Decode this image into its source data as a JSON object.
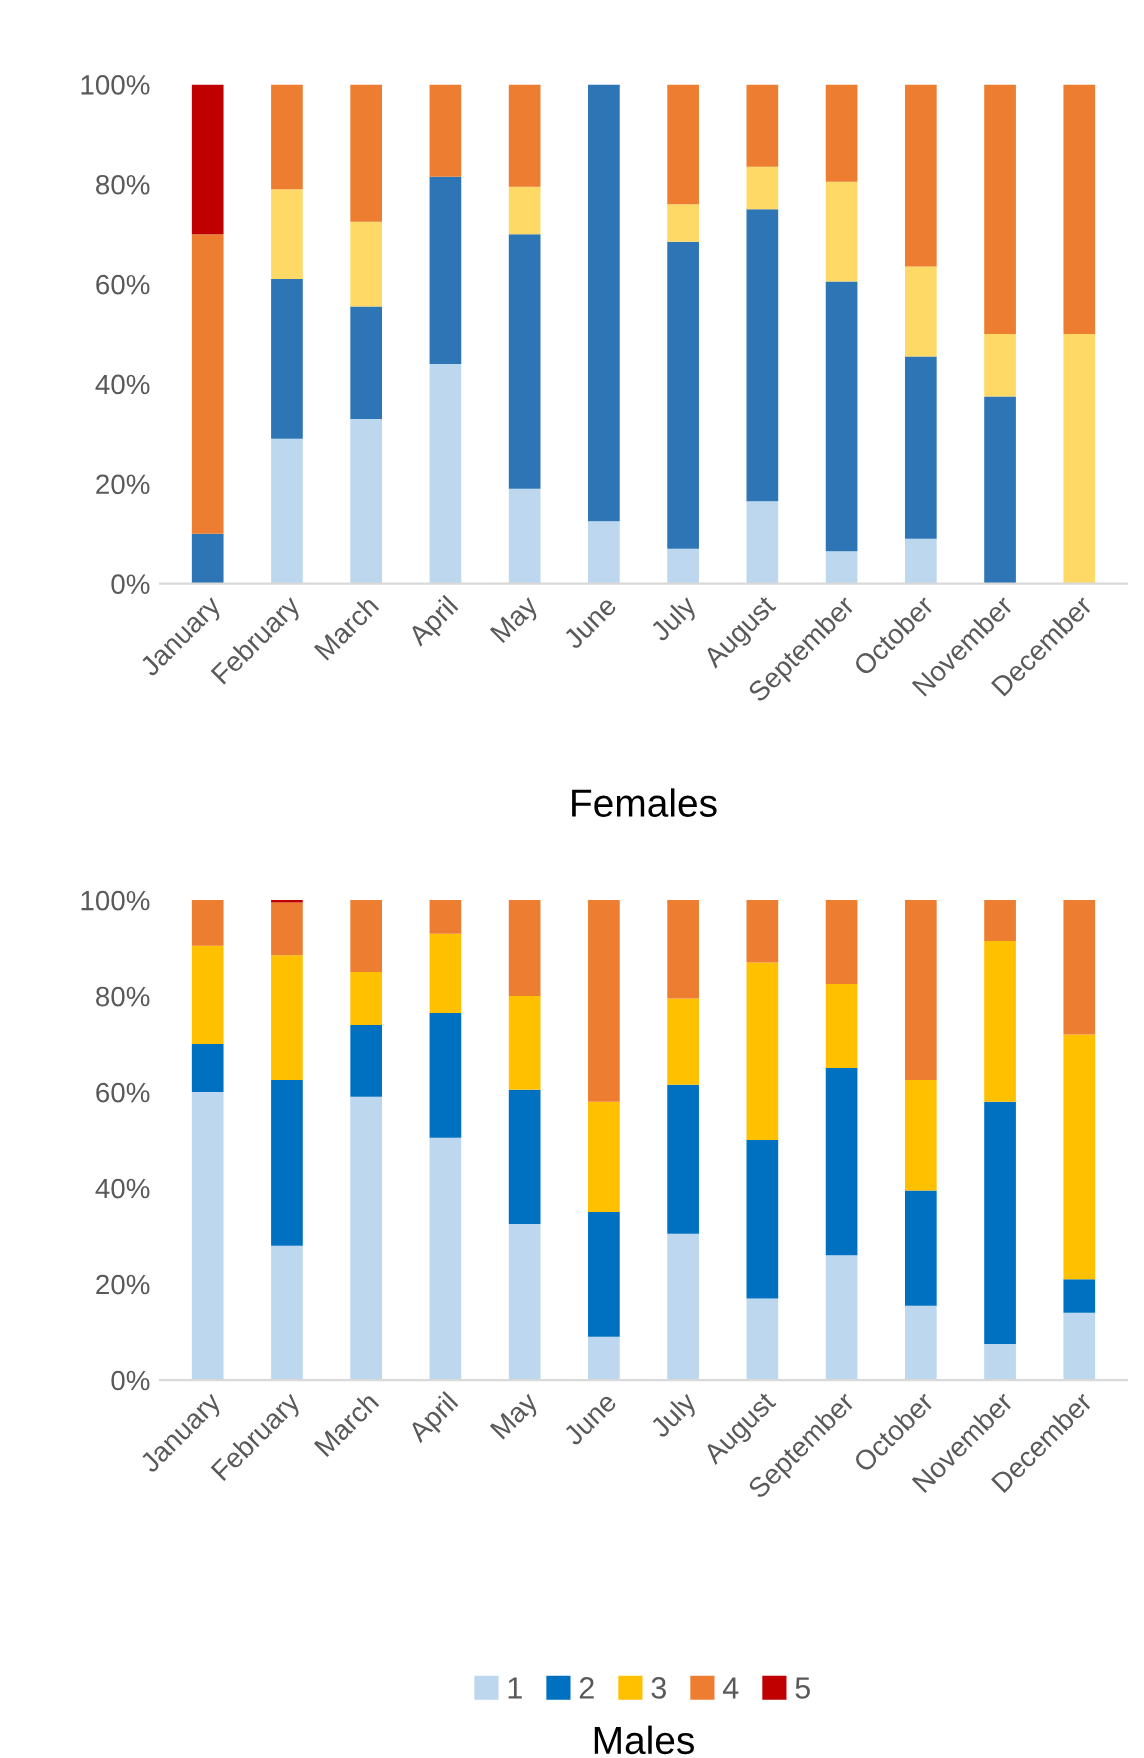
{
  "chart_data": [
    {
      "type": "bar",
      "stacked": true,
      "xlabel": "Females",
      "categories": [
        "January",
        "February",
        "March",
        "April",
        "May",
        "June",
        "July",
        "August",
        "September",
        "October",
        "November",
        "December"
      ],
      "ylim": [
        0,
        100
      ],
      "yticks": [
        {
          "value": 0,
          "label": "0%"
        },
        {
          "value": 20,
          "label": "20%"
        },
        {
          "value": 40,
          "label": "40%"
        },
        {
          "value": 60,
          "label": "60%"
        },
        {
          "value": 80,
          "label": "80%"
        },
        {
          "value": 100,
          "label": "100%"
        }
      ],
      "grid": false,
      "legend": false,
      "series": [
        {
          "color": "#bdd7ee",
          "values": [
            0,
            29,
            33,
            44,
            19,
            12.5,
            7,
            16.5,
            6.5,
            9,
            0,
            0
          ]
        },
        {
          "color": "#2e75b6",
          "values": [
            10,
            32,
            22.5,
            37.5,
            51,
            87.5,
            61.5,
            58.5,
            54,
            36.5,
            37.5,
            0
          ]
        },
        {
          "color": "#ffd966",
          "values": [
            0,
            18,
            17,
            0,
            9.5,
            0,
            7.5,
            8.5,
            20,
            18,
            12.5,
            50
          ]
        },
        {
          "color": "#ed7d31",
          "values": [
            60,
            21,
            27.5,
            18.5,
            20.5,
            0,
            24,
            16.5,
            19.5,
            36.5,
            50,
            50
          ]
        },
        {
          "color": "#c00000",
          "values": [
            30,
            0,
            0,
            0,
            0,
            0,
            0,
            0,
            0,
            0,
            0,
            0
          ]
        }
      ]
    },
    {
      "type": "bar",
      "stacked": true,
      "xlabel": "Males",
      "categories": [
        "January",
        "February",
        "March",
        "April",
        "May",
        "June",
        "July",
        "August",
        "September",
        "October",
        "November",
        "December"
      ],
      "ylim": [
        0,
        100
      ],
      "yticks": [
        {
          "value": 0,
          "label": "0%"
        },
        {
          "value": 20,
          "label": "20%"
        },
        {
          "value": 40,
          "label": "40%"
        },
        {
          "value": 60,
          "label": "60%"
        },
        {
          "value": 80,
          "label": "80%"
        },
        {
          "value": 100,
          "label": "100%"
        }
      ],
      "grid": false,
      "legend": "bottom",
      "series": [
        {
          "name": "1",
          "color": "#bdd7ee",
          "values": [
            60,
            28,
            59,
            50.5,
            32.5,
            9,
            30.5,
            17,
            26,
            15.5,
            7.5,
            14
          ]
        },
        {
          "name": "2",
          "color": "#0070c0",
          "values": [
            10,
            34.5,
            15,
            26,
            28,
            26,
            31,
            33,
            39,
            24,
            50.5,
            7
          ]
        },
        {
          "name": "3",
          "color": "#ffc000",
          "values": [
            20.5,
            26,
            11,
            16.5,
            19.5,
            23,
            18,
            37,
            17.5,
            23,
            33.5,
            51
          ]
        },
        {
          "name": "4",
          "color": "#ed7d31",
          "values": [
            9.5,
            11,
            15,
            7,
            20,
            42,
            20.5,
            13,
            17.5,
            37.5,
            8.5,
            28
          ]
        },
        {
          "name": "5",
          "color": "#c00000",
          "values": [
            0,
            0.5,
            0,
            0,
            0,
            0,
            0,
            0,
            0,
            0,
            0,
            0
          ]
        }
      ]
    }
  ]
}
